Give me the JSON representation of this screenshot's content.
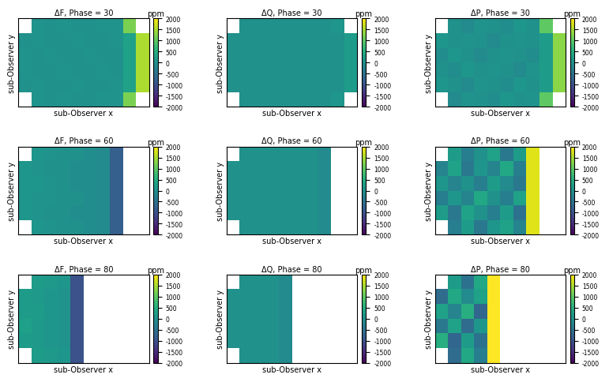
{
  "chart_data": [
    {
      "type": "heatmap",
      "title": "ΔF, Phase = 30",
      "x_label": "sub-Observer x",
      "y_label": "sub-Observer y",
      "tick_labels": false,
      "xlim": [
        -1,
        1
      ],
      "ylim": [
        -0.75,
        0.75
      ],
      "x_edges": [
        -1,
        -0.8,
        -0.6,
        -0.4,
        -0.2,
        0,
        0.2,
        0.4,
        0.6,
        0.8,
        1
      ],
      "y_edges": [
        -0.75,
        -0.5,
        -0.25,
        0,
        0.25,
        0.5,
        0.75
      ],
      "cells": [
        [
          null,
          50,
          0,
          50,
          0,
          0,
          50,
          50,
          1200,
          null
        ],
        [
          0,
          50,
          0,
          0,
          50,
          0,
          0,
          50,
          300,
          1500
        ],
        [
          50,
          0,
          0,
          50,
          0,
          0,
          50,
          0,
          300,
          1500
        ],
        [
          50,
          0,
          50,
          0,
          0,
          50,
          0,
          0,
          300,
          1500
        ],
        [
          0,
          50,
          0,
          0,
          50,
          0,
          0,
          50,
          300,
          1500
        ],
        [
          null,
          50,
          0,
          50,
          0,
          0,
          50,
          50,
          1200,
          null
        ]
      ],
      "colorbar": {
        "label": "ppm",
        "range": [
          -2000,
          2000
        ],
        "ticks": [
          -2000,
          -1500,
          -1000,
          -500,
          0,
          500,
          1000,
          1500,
          2000
        ]
      }
    },
    {
      "type": "heatmap",
      "title": "ΔQ, Phase = 30",
      "x_label": "sub-Observer x",
      "y_label": "sub-Observer y",
      "tick_labels": false,
      "xlim": [
        -1,
        1
      ],
      "ylim": [
        -0.75,
        0.75
      ],
      "x_edges": [
        -1,
        -0.8,
        -0.6,
        -0.4,
        -0.2,
        0,
        0.2,
        0.4,
        0.6,
        0.8,
        1
      ],
      "y_edges": [
        -0.75,
        -0.5,
        -0.25,
        0,
        0.25,
        0.5,
        0.75
      ],
      "cells": [
        [
          null,
          0,
          0,
          0,
          0,
          0,
          0,
          0,
          100,
          null
        ],
        [
          0,
          0,
          0,
          0,
          0,
          0,
          0,
          0,
          0,
          200
        ],
        [
          0,
          0,
          0,
          0,
          0,
          0,
          0,
          0,
          0,
          200
        ],
        [
          0,
          0,
          0,
          0,
          0,
          0,
          0,
          0,
          0,
          200
        ],
        [
          0,
          0,
          0,
          0,
          0,
          0,
          0,
          0,
          0,
          200
        ],
        [
          null,
          0,
          0,
          0,
          0,
          0,
          0,
          0,
          100,
          null
        ]
      ],
      "colorbar": {
        "label": "ppm",
        "range": [
          -2000,
          2000
        ],
        "ticks": [
          -2000,
          -1500,
          -1000,
          -500,
          0,
          500,
          1000,
          1500,
          2000
        ]
      }
    },
    {
      "type": "heatmap",
      "title": "ΔP, Phase = 30",
      "x_label": "sub-Observer x",
      "y_label": "sub-Observer y",
      "tick_labels": false,
      "xlim": [
        -1,
        1
      ],
      "ylim": [
        -0.75,
        0.75
      ],
      "x_edges": [
        -1,
        -0.8,
        -0.6,
        -0.4,
        -0.2,
        0,
        0.2,
        0.4,
        0.6,
        0.8,
        1
      ],
      "y_edges": [
        -0.75,
        -0.5,
        -0.25,
        0,
        0.25,
        0.5,
        0.75
      ],
      "cells": [
        [
          null,
          -100,
          50,
          0,
          -50,
          100,
          0,
          50,
          1000,
          null
        ],
        [
          100,
          0,
          -100,
          50,
          0,
          -50,
          100,
          0,
          200,
          1300
        ],
        [
          0,
          -50,
          100,
          0,
          50,
          0,
          -100,
          50,
          200,
          1300
        ],
        [
          -50,
          100,
          0,
          -100,
          0,
          50,
          0,
          -50,
          200,
          1300
        ],
        [
          100,
          0,
          50,
          0,
          -100,
          0,
          50,
          0,
          200,
          1300
        ],
        [
          null,
          0,
          -100,
          50,
          0,
          -50,
          100,
          0,
          1000,
          null
        ]
      ],
      "colorbar": {
        "label": "ppm",
        "range": [
          -2000,
          2000
        ],
        "ticks": [
          -2000,
          -1500,
          -1000,
          -500,
          0,
          500,
          1000,
          1500,
          2000
        ]
      }
    },
    {
      "type": "heatmap",
      "title": "ΔF, Phase = 60",
      "x_label": "sub-Observer x",
      "y_label": "sub-Observer y",
      "tick_labels": false,
      "xlim": [
        -1,
        1
      ],
      "ylim": [
        -0.75,
        0.75
      ],
      "x_edges": [
        -1,
        -0.8,
        -0.6,
        -0.4,
        -0.2,
        0,
        0.2,
        0.4,
        0.6,
        0.8,
        1
      ],
      "y_edges": [
        -0.75,
        -0.5,
        -0.25,
        0,
        0.25,
        0.5,
        0.75
      ],
      "cells": [
        [
          null,
          100,
          50,
          0,
          0,
          -50,
          -100,
          -800,
          null,
          null
        ],
        [
          100,
          50,
          0,
          0,
          -50,
          -50,
          -100,
          -800,
          null,
          null
        ],
        [
          100,
          50,
          50,
          0,
          0,
          -50,
          -100,
          -800,
          null,
          null
        ],
        [
          100,
          100,
          50,
          0,
          -50,
          -50,
          -100,
          -800,
          null,
          null
        ],
        [
          100,
          50,
          0,
          0,
          -50,
          -50,
          -100,
          -800,
          null,
          null
        ],
        [
          null,
          100,
          50,
          0,
          0,
          -50,
          -100,
          -800,
          null,
          null
        ]
      ],
      "colorbar": {
        "label": "ppm",
        "range": [
          -2000,
          2000
        ],
        "ticks": [
          -2000,
          -1500,
          -1000,
          -500,
          0,
          500,
          1000,
          1500,
          2000
        ]
      }
    },
    {
      "type": "heatmap",
      "title": "ΔQ, Phase = 60",
      "x_label": "sub-Observer x",
      "y_label": "sub-Observer y",
      "tick_labels": false,
      "xlim": [
        -1,
        1
      ],
      "ylim": [
        -0.75,
        0.75
      ],
      "x_edges": [
        -1,
        -0.8,
        -0.6,
        -0.4,
        -0.2,
        0,
        0.2,
        0.4,
        0.6,
        0.8,
        1
      ],
      "y_edges": [
        -0.75,
        -0.5,
        -0.25,
        0,
        0.25,
        0.5,
        0.75
      ],
      "cells": [
        [
          null,
          0,
          0,
          0,
          0,
          0,
          0,
          -100,
          null,
          null
        ],
        [
          0,
          0,
          0,
          0,
          0,
          0,
          0,
          -100,
          null,
          null
        ],
        [
          0,
          0,
          0,
          0,
          0,
          0,
          0,
          -100,
          null,
          null
        ],
        [
          0,
          0,
          0,
          0,
          0,
          0,
          0,
          -100,
          null,
          null
        ],
        [
          0,
          0,
          0,
          0,
          0,
          0,
          0,
          -100,
          null,
          null
        ],
        [
          null,
          0,
          0,
          0,
          0,
          0,
          0,
          -100,
          null,
          null
        ]
      ],
      "colorbar": {
        "label": "ppm",
        "range": [
          -2000,
          2000
        ],
        "ticks": [
          -2000,
          -1500,
          -1000,
          -500,
          0,
          500,
          1000,
          1500,
          2000
        ]
      }
    },
    {
      "type": "heatmap",
      "title": "ΔP, Phase = 60",
      "x_label": "sub-Observer x",
      "y_label": "sub-Observer y",
      "tick_labels": false,
      "xlim": [
        -1,
        1
      ],
      "ylim": [
        -0.75,
        0.75
      ],
      "x_edges": [
        -1,
        -0.8,
        -0.6,
        -0.4,
        -0.2,
        0,
        0.2,
        0.4,
        0.6,
        0.8,
        1
      ],
      "y_edges": [
        -0.75,
        -0.5,
        -0.25,
        0,
        0.25,
        0.5,
        0.75
      ],
      "cells": [
        [
          null,
          -300,
          200,
          -400,
          100,
          300,
          -200,
          1800,
          null,
          null
        ],
        [
          200,
          -400,
          300,
          0,
          -300,
          200,
          -500,
          1800,
          null,
          null
        ],
        [
          -300,
          100,
          -200,
          400,
          0,
          -300,
          300,
          1800,
          null,
          null
        ],
        [
          100,
          -200,
          0,
          -300,
          200,
          -100,
          -400,
          1800,
          null,
          null
        ],
        [
          -200,
          300,
          -400,
          100,
          -200,
          400,
          -300,
          1800,
          null,
          null
        ],
        [
          null,
          200,
          -300,
          0,
          300,
          -400,
          200,
          1800,
          null,
          null
        ]
      ],
      "colorbar": {
        "label": "ppm",
        "range": [
          -2000,
          2000
        ],
        "ticks": [
          -2000,
          -1500,
          -1000,
          -500,
          0,
          500,
          1000,
          1500,
          2000
        ]
      }
    },
    {
      "type": "heatmap",
      "title": "ΔF, Phase = 80",
      "x_label": "sub-Observer x",
      "y_label": "sub-Observer y",
      "tick_labels": false,
      "xlim": [
        -1,
        1
      ],
      "ylim": [
        -0.75,
        0.75
      ],
      "x_edges": [
        -1,
        -0.8,
        -0.6,
        -0.4,
        -0.2,
        0,
        0.2,
        0.4,
        0.6,
        0.8,
        1
      ],
      "y_edges": [
        -0.75,
        -0.5,
        -0.25,
        0,
        0.25,
        0.5,
        0.75
      ],
      "cells": [
        [
          null,
          200,
          150,
          100,
          -1000,
          null,
          null,
          null,
          null,
          null
        ],
        [
          200,
          150,
          100,
          50,
          -1000,
          null,
          null,
          null,
          null,
          null
        ],
        [
          250,
          150,
          100,
          50,
          -1000,
          null,
          null,
          null,
          null,
          null
        ],
        [
          200,
          200,
          100,
          50,
          -1000,
          null,
          null,
          null,
          null,
          null
        ],
        [
          200,
          150,
          100,
          50,
          -1000,
          null,
          null,
          null,
          null,
          null
        ],
        [
          null,
          200,
          150,
          100,
          -1000,
          null,
          null,
          null,
          null,
          null
        ]
      ],
      "colorbar": {
        "label": "ppm",
        "range": [
          -2000,
          2000
        ],
        "ticks": [
          -2000,
          -1500,
          -1000,
          -500,
          0,
          500,
          1000,
          1500,
          2000
        ]
      }
    },
    {
      "type": "heatmap",
      "title": "ΔQ, Phase = 80",
      "x_label": "sub-Observer x",
      "y_label": "sub-Observer y",
      "tick_labels": false,
      "xlim": [
        -1,
        1
      ],
      "ylim": [
        -0.75,
        0.75
      ],
      "x_edges": [
        -1,
        -0.8,
        -0.6,
        -0.4,
        -0.2,
        0,
        0.2,
        0.4,
        0.6,
        0.8,
        1
      ],
      "y_edges": [
        -0.75,
        -0.5,
        -0.25,
        0,
        0.25,
        0.5,
        0.75
      ],
      "cells": [
        [
          null,
          0,
          0,
          0,
          -100,
          null,
          null,
          null,
          null,
          null
        ],
        [
          0,
          0,
          0,
          0,
          -100,
          null,
          null,
          null,
          null,
          null
        ],
        [
          0,
          0,
          0,
          0,
          -100,
          null,
          null,
          null,
          null,
          null
        ],
        [
          0,
          0,
          0,
          0,
          -100,
          null,
          null,
          null,
          null,
          null
        ],
        [
          0,
          0,
          0,
          0,
          -100,
          null,
          null,
          null,
          null,
          null
        ],
        [
          null,
          0,
          0,
          0,
          -100,
          null,
          null,
          null,
          null,
          null
        ]
      ],
      "colorbar": {
        "label": "ppm",
        "range": [
          -2000,
          2000
        ],
        "ticks": [
          -2000,
          -1500,
          -1000,
          -500,
          0,
          500,
          1000,
          1500,
          2000
        ]
      }
    },
    {
      "type": "heatmap",
      "title": "ΔP, Phase = 80",
      "x_label": "sub-Observer x",
      "y_label": "sub-Observer y",
      "tick_labels": false,
      "xlim": [
        -1,
        1
      ],
      "ylim": [
        -0.75,
        0.75
      ],
      "x_edges": [
        -1,
        -0.8,
        -0.6,
        -0.4,
        -0.2,
        0,
        0.2,
        0.4,
        0.6,
        0.8,
        1
      ],
      "y_edges": [
        -0.75,
        -0.5,
        -0.25,
        0,
        0.25,
        0.5,
        0.75
      ],
      "cells": [
        [
          null,
          -600,
          400,
          -300,
          2000,
          null,
          null,
          null,
          null,
          null
        ],
        [
          500,
          -700,
          200,
          -500,
          2000,
          null,
          null,
          null,
          null,
          null
        ],
        [
          -400,
          300,
          -600,
          100,
          2000,
          null,
          null,
          null,
          null,
          null
        ],
        [
          300,
          -200,
          500,
          -700,
          2000,
          null,
          null,
          null,
          null,
          null
        ],
        [
          -600,
          400,
          -100,
          300,
          2000,
          null,
          null,
          null,
          null,
          null
        ],
        [
          null,
          200,
          -500,
          400,
          2000,
          null,
          null,
          null,
          null,
          null
        ]
      ],
      "colorbar": {
        "label": "ppm",
        "range": [
          -2000,
          2000
        ],
        "ticks": [
          -2000,
          -1500,
          -1000,
          -500,
          0,
          500,
          1000,
          1500,
          2000
        ]
      }
    }
  ]
}
